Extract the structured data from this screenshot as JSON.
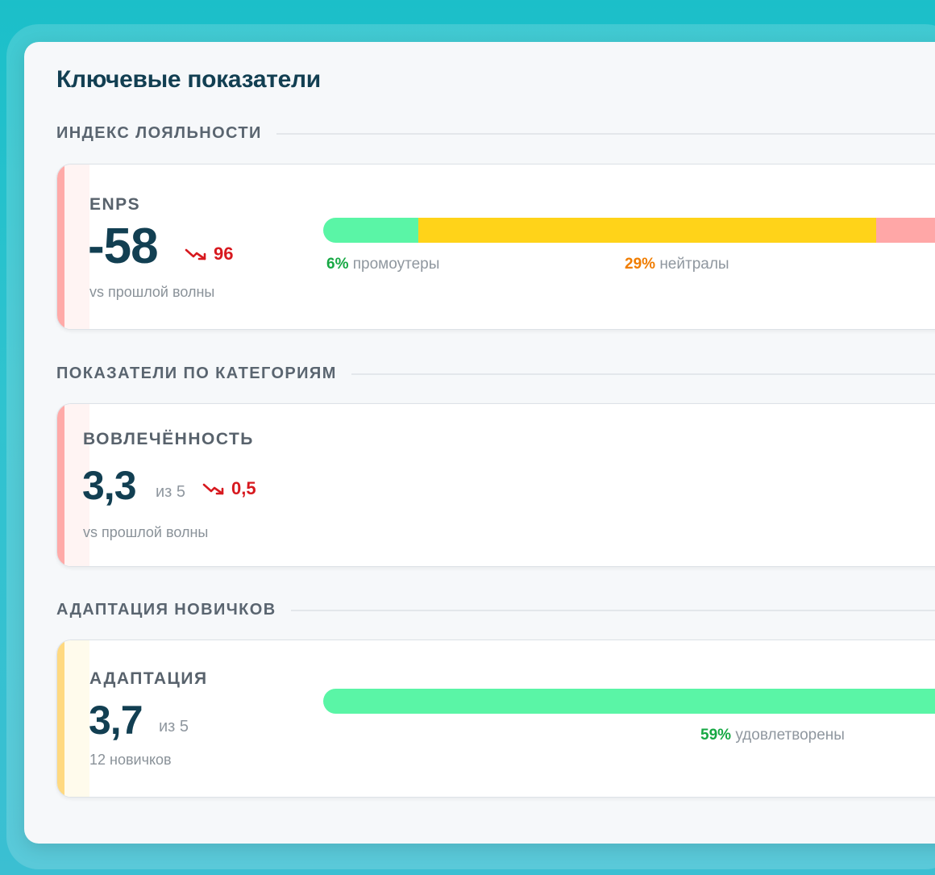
{
  "page": {
    "title": "Ключевые показатели"
  },
  "colors": {
    "promoters": "#5af5a6",
    "neutrals": "#ffd319",
    "detractors": "#ffa7a7",
    "satisfied": "#5af5a6",
    "pct_green": "#17a844",
    "pct_orange": "#f07d00",
    "delta_red": "#d7191f"
  },
  "sections": {
    "loyalty": {
      "label": "ИНДЕКС ЛОЯЛЬНОСТИ",
      "card": {
        "name": "ENPS",
        "value": "-58",
        "delta": "96",
        "delta_direction": "down",
        "sub": "vs прошлой волны",
        "bar": [
          {
            "key": "promoters",
            "percent": 6
          },
          {
            "key": "neutrals",
            "percent": 29
          },
          {
            "key": "detractors",
            "percent": 65
          }
        ],
        "legend": {
          "promoters_pct": "6%",
          "promoters_label": "промоутеры",
          "neutrals_pct": "29%",
          "neutrals_label": "нейтралы"
        }
      }
    },
    "categories": {
      "label": "ПОКАЗАТЕЛИ ПО КАТЕГОРИЯМ",
      "card": {
        "name": "ВОВЛЕЧЁННОСТЬ",
        "value": "3,3",
        "scale": "из 5",
        "delta": "0,5",
        "delta_direction": "down",
        "sub": "vs прошлой волны"
      }
    },
    "onboarding": {
      "label": "АДАПТАЦИЯ НОВИЧКОВ",
      "card": {
        "name": "АДАПТАЦИЯ",
        "value": "3,7",
        "scale": "из 5",
        "sub": "12 новичков",
        "bar": [
          {
            "key": "satisfied",
            "percent": 59
          }
        ],
        "legend": {
          "satisfied_pct": "59%",
          "satisfied_label": "удовлетворены"
        }
      }
    }
  }
}
